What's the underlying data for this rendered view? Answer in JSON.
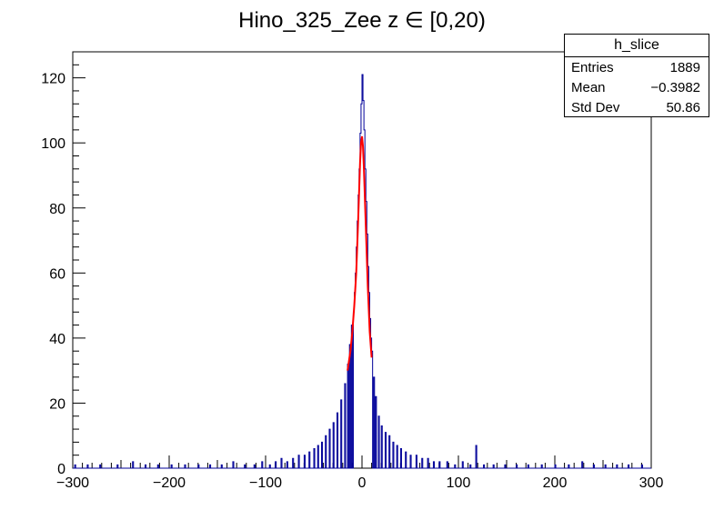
{
  "chart_data": {
    "type": "histogram",
    "title": "Hino_325_Zee z  ∈ [0,20)",
    "xlabel": "",
    "ylabel": "",
    "xlim": [
      -300,
      300
    ],
    "ylim": [
      0,
      128
    ],
    "x_ticks": [
      -300,
      -200,
      -100,
      0,
      100,
      200,
      300
    ],
    "y_ticks": [
      0,
      20,
      40,
      60,
      80,
      100,
      120
    ],
    "grid": false,
    "legend": "none",
    "series": [
      {
        "style": "step",
        "color": "#000099",
        "bin_width": 1,
        "points": [
          [
            -298,
            1
          ],
          [
            -285,
            1
          ],
          [
            -272,
            1
          ],
          [
            -254,
            1
          ],
          [
            -238,
            2
          ],
          [
            -225,
            1
          ],
          [
            -212,
            1
          ],
          [
            -198,
            1
          ],
          [
            -184,
            1
          ],
          [
            -170,
            1
          ],
          [
            -158,
            1
          ],
          [
            -146,
            1
          ],
          [
            -134,
            2
          ],
          [
            -122,
            1
          ],
          [
            -112,
            1
          ],
          [
            -104,
            2
          ],
          [
            -96,
            1
          ],
          [
            -90,
            2
          ],
          [
            -84,
            3
          ],
          [
            -78,
            2
          ],
          [
            -72,
            3
          ],
          [
            -66,
            4
          ],
          [
            -60,
            4
          ],
          [
            -55,
            5
          ],
          [
            -50,
            6
          ],
          [
            -46,
            7
          ],
          [
            -42,
            8
          ],
          [
            -38,
            10
          ],
          [
            -34,
            12
          ],
          [
            -30,
            14
          ],
          [
            -26,
            17
          ],
          [
            -22,
            21
          ],
          [
            -18,
            26
          ],
          [
            -15,
            32
          ],
          [
            -13,
            38
          ],
          [
            -11,
            44
          ],
          [
            -9,
            48
          ],
          [
            -8,
            54
          ],
          [
            -7,
            60
          ],
          [
            -6,
            68
          ],
          [
            -5,
            76
          ],
          [
            -4,
            84
          ],
          [
            -3,
            92
          ],
          [
            -2,
            103
          ],
          [
            -1,
            112
          ],
          [
            0,
            121
          ],
          [
            1,
            113
          ],
          [
            2,
            104
          ],
          [
            3,
            92
          ],
          [
            4,
            82
          ],
          [
            5,
            72
          ],
          [
            6,
            62
          ],
          [
            7,
            54
          ],
          [
            8,
            46
          ],
          [
            9,
            40
          ],
          [
            10,
            36
          ],
          [
            12,
            28
          ],
          [
            14,
            22
          ],
          [
            17,
            16
          ],
          [
            20,
            13
          ],
          [
            24,
            11
          ],
          [
            28,
            10
          ],
          [
            32,
            8
          ],
          [
            36,
            7
          ],
          [
            40,
            6
          ],
          [
            45,
            5
          ],
          [
            50,
            4
          ],
          [
            56,
            4
          ],
          [
            62,
            3
          ],
          [
            68,
            3
          ],
          [
            74,
            2
          ],
          [
            80,
            2
          ],
          [
            88,
            2
          ],
          [
            96,
            1
          ],
          [
            104,
            2
          ],
          [
            112,
            1
          ],
          [
            118,
            7
          ],
          [
            126,
            1
          ],
          [
            136,
            1
          ],
          [
            148,
            1
          ],
          [
            160,
            1
          ],
          [
            172,
            1
          ],
          [
            186,
            1
          ],
          [
            200,
            1
          ],
          [
            214,
            1
          ],
          [
            228,
            2
          ],
          [
            240,
            1
          ],
          [
            252,
            1
          ],
          [
            264,
            1
          ],
          [
            276,
            1
          ],
          [
            290,
            1
          ]
        ]
      },
      {
        "style": "line",
        "color": "#ff0000",
        "x_range": [
          -15,
          10
        ],
        "points": [
          [
            -15,
            30
          ],
          [
            -12,
            36
          ],
          [
            -10,
            42
          ],
          [
            -8,
            50
          ],
          [
            -6,
            60
          ],
          [
            -4,
            76
          ],
          [
            -2,
            94
          ],
          [
            -1,
            100
          ],
          [
            0,
            102
          ],
          [
            1,
            99
          ],
          [
            2,
            92
          ],
          [
            4,
            74
          ],
          [
            6,
            56
          ],
          [
            8,
            42
          ],
          [
            10,
            34
          ]
        ]
      }
    ]
  },
  "stats": {
    "title": "h_slice",
    "rows": [
      {
        "label": "Entries",
        "value": "1889"
      },
      {
        "label": "Mean",
        "value": "−0.3982"
      },
      {
        "label": "Std Dev",
        "value": "50.86"
      }
    ]
  }
}
